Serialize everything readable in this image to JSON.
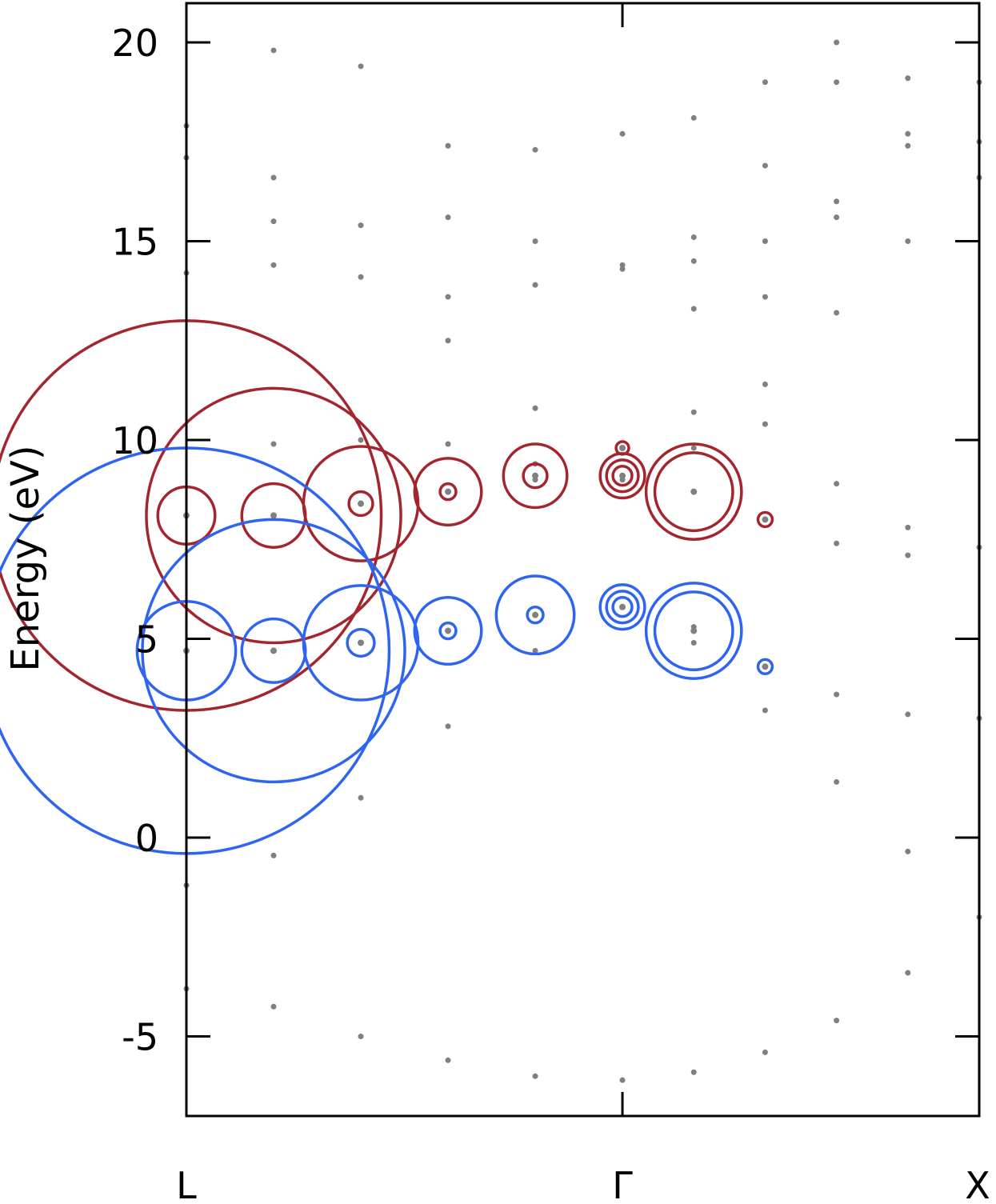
{
  "chart_data": {
    "type": "scatter",
    "ylabel": "Energy (eV)",
    "ylim": [
      -7,
      21
    ],
    "xlim": [
      0,
      1
    ],
    "yticks": [
      20,
      15,
      10,
      5,
      0,
      -5
    ],
    "ytick_labels": [
      "20",
      "15",
      "10",
      "5",
      "0",
      "-5"
    ],
    "xticks": [
      {
        "label": "L",
        "x": 0
      },
      {
        "label": "Γ",
        "x": 0.55
      },
      {
        "label": "X",
        "x": 1
      }
    ],
    "grid": false,
    "legend": "none",
    "colors": {
      "gray_points": "#808080",
      "red_band": "#a3262e",
      "blue_band": "#2e64f0",
      "axes": "#000000"
    },
    "background_points": [
      {
        "x": 0.0,
        "energies": [
          17.9,
          17.1,
          14.2,
          8.1,
          4.7,
          -1.2,
          -3.8
        ]
      },
      {
        "x": 0.11,
        "energies": [
          19.8,
          16.6,
          15.5,
          14.4,
          9.9,
          8.1,
          4.7,
          -0.45,
          -4.25
        ]
      },
      {
        "x": 0.22,
        "energies": [
          19.4,
          15.4,
          14.1,
          10.0,
          8.4,
          4.9,
          1.0,
          -5.0
        ]
      },
      {
        "x": 0.33,
        "energies": [
          17.4,
          15.6,
          13.6,
          12.5,
          9.9,
          8.7,
          5.2,
          2.8,
          -5.6
        ]
      },
      {
        "x": 0.44,
        "energies": [
          17.3,
          15.0,
          13.9,
          10.8,
          9.4,
          9.0,
          5.6,
          4.7,
          -6.0
        ]
      },
      {
        "x": 0.55,
        "energies": [
          17.7,
          14.4,
          14.3,
          9.8,
          9.0,
          5.8,
          -6.1
        ]
      },
      {
        "x": 0.64,
        "energies": [
          18.1,
          15.1,
          14.5,
          13.3,
          10.7,
          9.8,
          8.7,
          5.3,
          4.9,
          -5.9
        ]
      },
      {
        "x": 0.73,
        "energies": [
          19.0,
          16.9,
          15.0,
          13.6,
          11.4,
          10.4,
          8.0,
          4.3,
          3.2,
          -5.4
        ]
      },
      {
        "x": 0.82,
        "energies": [
          20.0,
          19.0,
          16.0,
          15.6,
          13.2,
          8.9,
          7.4,
          3.6,
          1.4,
          -4.6
        ]
      },
      {
        "x": 0.91,
        "energies": [
          19.1,
          17.7,
          17.4,
          15.0,
          7.8,
          7.1,
          3.1,
          -0.35,
          -3.4
        ]
      },
      {
        "x": 1.0,
        "energies": [
          19.0,
          17.5,
          16.6,
          7.3,
          3.0,
          -2.0
        ]
      }
    ],
    "series": [
      {
        "color": "#a3262e",
        "points": [
          {
            "x": 0.0,
            "y": 8.1,
            "weights": [
              4.9,
              0.72
            ]
          },
          {
            "x": 0.11,
            "y": 8.1,
            "weights": [
              3.2,
              0.8
            ]
          },
          {
            "x": 0.22,
            "y": 8.4,
            "weights": [
              1.44,
              0.3
            ]
          },
          {
            "x": 0.33,
            "y": 8.7,
            "weights": [
              0.84,
              0.2
            ]
          },
          {
            "x": 0.44,
            "y": 9.1,
            "weights": [
              0.8,
              0.3
            ]
          },
          {
            "x": 0.55,
            "y": 9.1,
            "weights": [
              0.56,
              0.4,
              0.24
            ]
          },
          {
            "x": 0.55,
            "y": 9.8,
            "weights": [
              0.16
            ]
          },
          {
            "x": 0.64,
            "y": 8.7,
            "weights": [
              1.2,
              0.98
            ]
          },
          {
            "x": 0.73,
            "y": 8.0,
            "weights": [
              0.18
            ]
          }
        ]
      },
      {
        "color": "#2e64f0",
        "points": [
          {
            "x": 0.0,
            "y": 4.7,
            "weights": [
              5.1,
              1.24
            ]
          },
          {
            "x": 0.11,
            "y": 4.7,
            "weights": [
              3.3,
              0.8
            ]
          },
          {
            "x": 0.22,
            "y": 4.9,
            "weights": [
              1.44,
              0.34
            ]
          },
          {
            "x": 0.33,
            "y": 5.2,
            "weights": [
              0.84,
              0.2
            ]
          },
          {
            "x": 0.44,
            "y": 5.6,
            "weights": [
              0.98,
              0.2
            ]
          },
          {
            "x": 0.55,
            "y": 5.8,
            "weights": [
              0.56,
              0.4,
              0.24
            ]
          },
          {
            "x": 0.64,
            "y": 5.2,
            "weights": [
              1.2,
              0.98
            ]
          },
          {
            "x": 0.73,
            "y": 4.3,
            "weights": [
              0.18
            ]
          }
        ]
      }
    ]
  }
}
